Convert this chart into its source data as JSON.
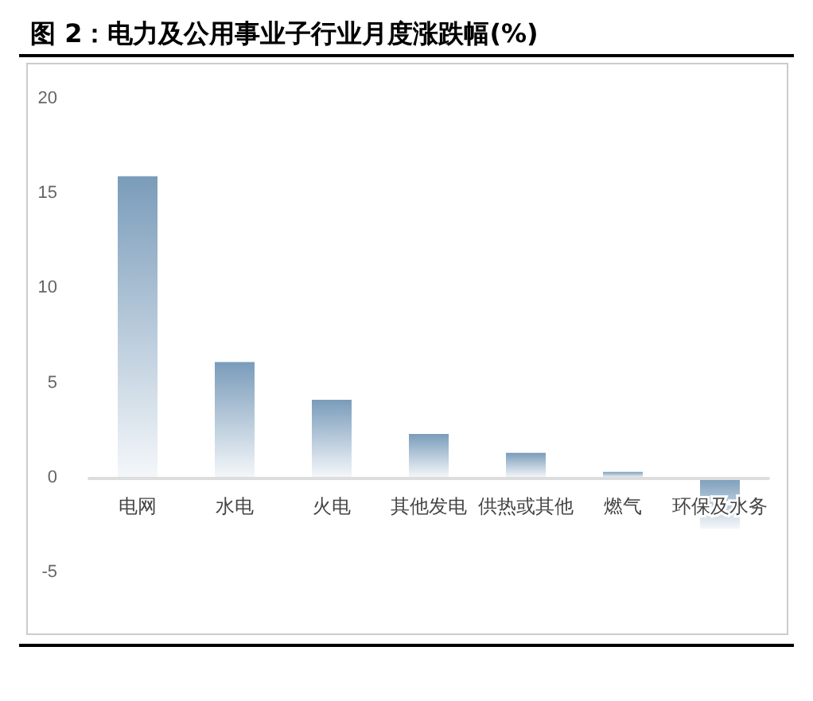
{
  "chart_data": {
    "type": "bar",
    "title": "图 2：电力及公用事业子行业月度涨跌幅(%)",
    "categories": [
      "电网",
      "水电",
      "火电",
      "其他发电",
      "供热或其他",
      "燃气",
      "环保及水务"
    ],
    "values": [
      15.9,
      6.1,
      4.1,
      2.3,
      1.3,
      0.3,
      -2.7
    ],
    "color": "#7a9cba",
    "ylim": [
      -5,
      20
    ],
    "yticks": [
      -5,
      0,
      5,
      10,
      15,
      20
    ],
    "grid": false
  }
}
